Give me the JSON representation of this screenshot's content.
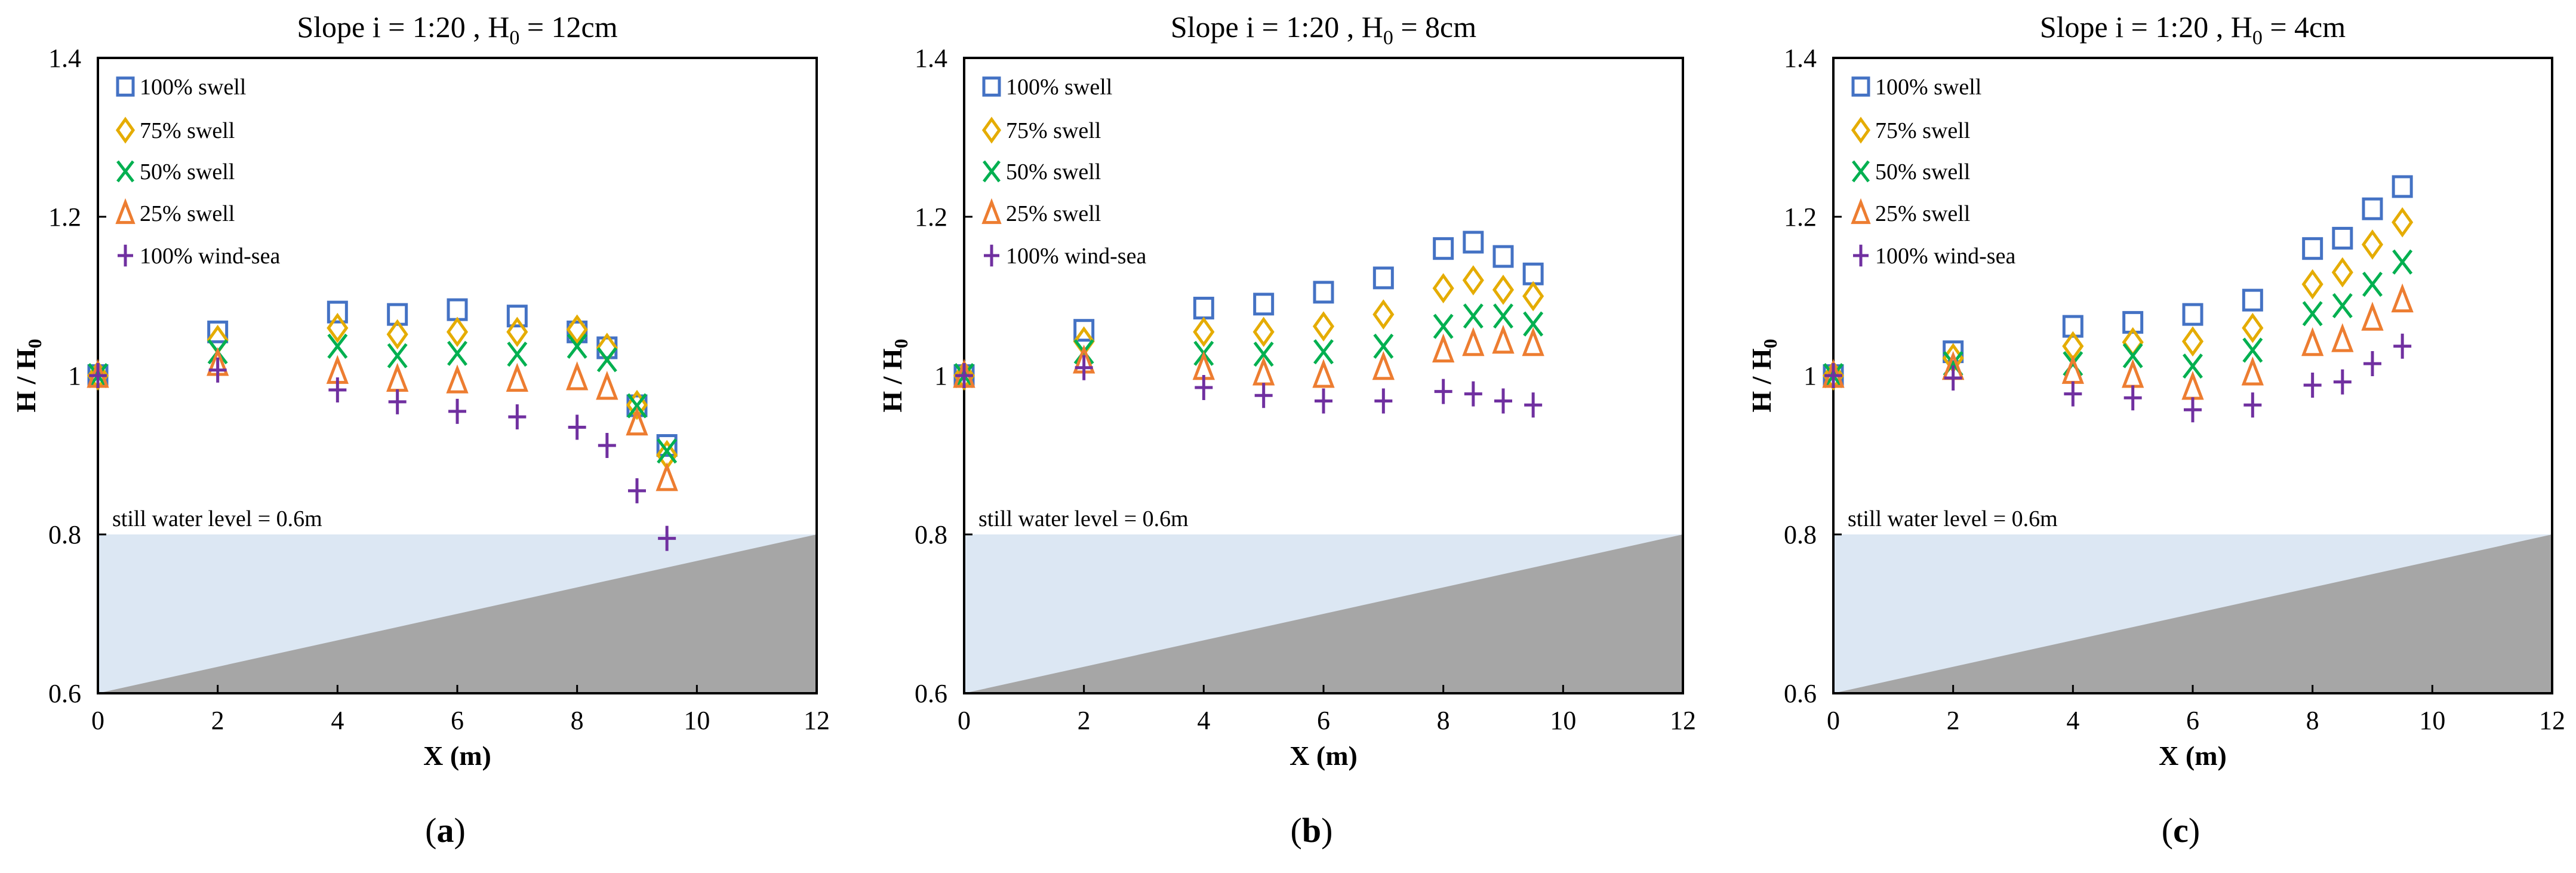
{
  "chart_data": [
    {
      "type": "scatter",
      "title": "Slope i = 1:20 , H0 = 12cm",
      "title_main": "Slope i = 1:20 , H",
      "title_sub": "0",
      "title_tail": " = 12cm",
      "panel_label": "a",
      "xlabel": "X (m)",
      "ylabel": "H / H0",
      "ylabel_main": "H / H",
      "ylabel_sub": "0",
      "xlim": [
        0,
        12
      ],
      "ylim": [
        0.6,
        1.4
      ],
      "xticks": [
        "0",
        "2",
        "4",
        "6",
        "8",
        "10",
        "12"
      ],
      "yticks": [
        "0.6",
        "0.8",
        "1",
        "1.2",
        "1.4"
      ],
      "annotation": "still water level = 0.6m",
      "legend_placement": "top-left",
      "x": [
        0,
        2,
        4,
        5,
        6,
        7,
        8,
        8.5,
        9,
        9.5
      ],
      "series": [
        {
          "name": "100% swell",
          "marker": "square",
          "color": "#4472C4",
          "values": [
            1,
            1.055,
            1.08,
            1.077,
            1.083,
            1.075,
            1.055,
            1.035,
            0.962,
            0.912
          ]
        },
        {
          "name": "75% swell",
          "marker": "diamond",
          "color": "#E5AC00",
          "values": [
            1,
            1.045,
            1.06,
            1.052,
            1.055,
            1.055,
            1.058,
            1.035,
            0.963,
            0.9
          ]
        },
        {
          "name": "50% swell",
          "marker": "x",
          "color": "#00B050",
          "values": [
            1,
            1.03,
            1.037,
            1.025,
            1.028,
            1.027,
            1.037,
            1.02,
            0.962,
            0.905
          ]
        },
        {
          "name": "25% swell",
          "marker": "triangle",
          "color": "#ED7D31",
          "values": [
            1,
            1.015,
            1.005,
            0.995,
            0.993,
            0.995,
            0.997,
            0.985,
            0.94,
            0.87
          ]
        },
        {
          "name": "100% wind-sea",
          "marker": "plus",
          "color": "#7030A0",
          "values": [
            1,
            1.007,
            0.982,
            0.967,
            0.955,
            0.948,
            0.935,
            0.912,
            0.855,
            0.795
          ]
        }
      ]
    },
    {
      "type": "scatter",
      "title": "Slope i = 1:20 , H0 = 8cm",
      "title_main": "Slope i = 1:20 , H",
      "title_sub": "0",
      "title_tail": " = 8cm",
      "panel_label": "b",
      "xlabel": "X (m)",
      "ylabel": "H / H0",
      "ylabel_main": "H / H",
      "ylabel_sub": "0",
      "xlim": [
        0,
        12
      ],
      "ylim": [
        0.6,
        1.4
      ],
      "xticks": [
        "0",
        "2",
        "4",
        "6",
        "8",
        "10",
        "12"
      ],
      "yticks": [
        "0.6",
        "0.8",
        "1",
        "1.2",
        "1.4"
      ],
      "annotation": "still water level = 0.6m",
      "legend_placement": "top-left",
      "x": [
        0,
        2,
        4,
        5,
        6,
        7,
        8,
        8.5,
        9,
        9.5
      ],
      "series": [
        {
          "name": "100% swell",
          "marker": "square",
          "color": "#4472C4",
          "values": [
            1,
            1.057,
            1.085,
            1.09,
            1.105,
            1.123,
            1.16,
            1.168,
            1.15,
            1.128
          ]
        },
        {
          "name": "75% swell",
          "marker": "diamond",
          "color": "#E5AC00",
          "values": [
            1,
            1.043,
            1.055,
            1.055,
            1.062,
            1.077,
            1.11,
            1.12,
            1.108,
            1.1
          ]
        },
        {
          "name": "50% swell",
          "marker": "x",
          "color": "#00B050",
          "values": [
            1,
            1.03,
            1.028,
            1.027,
            1.03,
            1.037,
            1.062,
            1.075,
            1.075,
            1.065
          ]
        },
        {
          "name": "25% swell",
          "marker": "triangle",
          "color": "#ED7D31",
          "values": [
            1,
            1.018,
            1.01,
            1.003,
            1.0,
            1.01,
            1.032,
            1.04,
            1.043,
            1.04
          ]
        },
        {
          "name": "100% wind-sea",
          "marker": "plus",
          "color": "#7030A0",
          "values": [
            1,
            1.01,
            0.985,
            0.975,
            0.968,
            0.968,
            0.98,
            0.977,
            0.968,
            0.963
          ]
        }
      ]
    },
    {
      "type": "scatter",
      "title": "Slope i = 1:20 , H0 = 4cm",
      "title_main": "Slope i = 1:20 , H",
      "title_sub": "0",
      "title_tail": " = 4cm",
      "panel_label": "c",
      "xlabel": "X (m)",
      "ylabel": "H / H0",
      "ylabel_main": "H / H",
      "ylabel_sub": "0",
      "xlim": [
        0,
        12
      ],
      "ylim": [
        0.6,
        1.4
      ],
      "xticks": [
        "0",
        "2",
        "4",
        "6",
        "8",
        "10",
        "12"
      ],
      "yticks": [
        "0.6",
        "0.8",
        "1",
        "1.2",
        "1.4"
      ],
      "annotation": "still water level = 0.6m",
      "legend_placement": "top-left",
      "x": [
        0,
        2,
        4,
        5,
        6,
        7,
        8,
        8.5,
        9,
        9.5
      ],
      "series": [
        {
          "name": "100% swell",
          "marker": "square",
          "color": "#4472C4",
          "values": [
            1,
            1.03,
            1.062,
            1.067,
            1.077,
            1.095,
            1.16,
            1.173,
            1.21,
            1.238
          ]
        },
        {
          "name": "75% swell",
          "marker": "diamond",
          "color": "#E5AC00",
          "values": [
            1,
            1.022,
            1.037,
            1.042,
            1.043,
            1.06,
            1.115,
            1.13,
            1.165,
            1.193
          ]
        },
        {
          "name": "50% swell",
          "marker": "x",
          "color": "#00B050",
          "values": [
            1,
            1.015,
            1.015,
            1.025,
            1.012,
            1.032,
            1.078,
            1.088,
            1.115,
            1.143
          ]
        },
        {
          "name": "25% swell",
          "marker": "triangle",
          "color": "#ED7D31",
          "values": [
            1,
            1.01,
            1.005,
            1.0,
            0.985,
            1.003,
            1.04,
            1.045,
            1.072,
            1.095
          ]
        },
        {
          "name": "100% wind-sea",
          "marker": "plus",
          "color": "#7030A0",
          "values": [
            1,
            0.997,
            0.977,
            0.972,
            0.957,
            0.963,
            0.988,
            0.992,
            1.015,
            1.037
          ]
        }
      ]
    }
  ],
  "colors": {
    "water": "#DCE7F3",
    "ground": "#A6A6A6"
  }
}
